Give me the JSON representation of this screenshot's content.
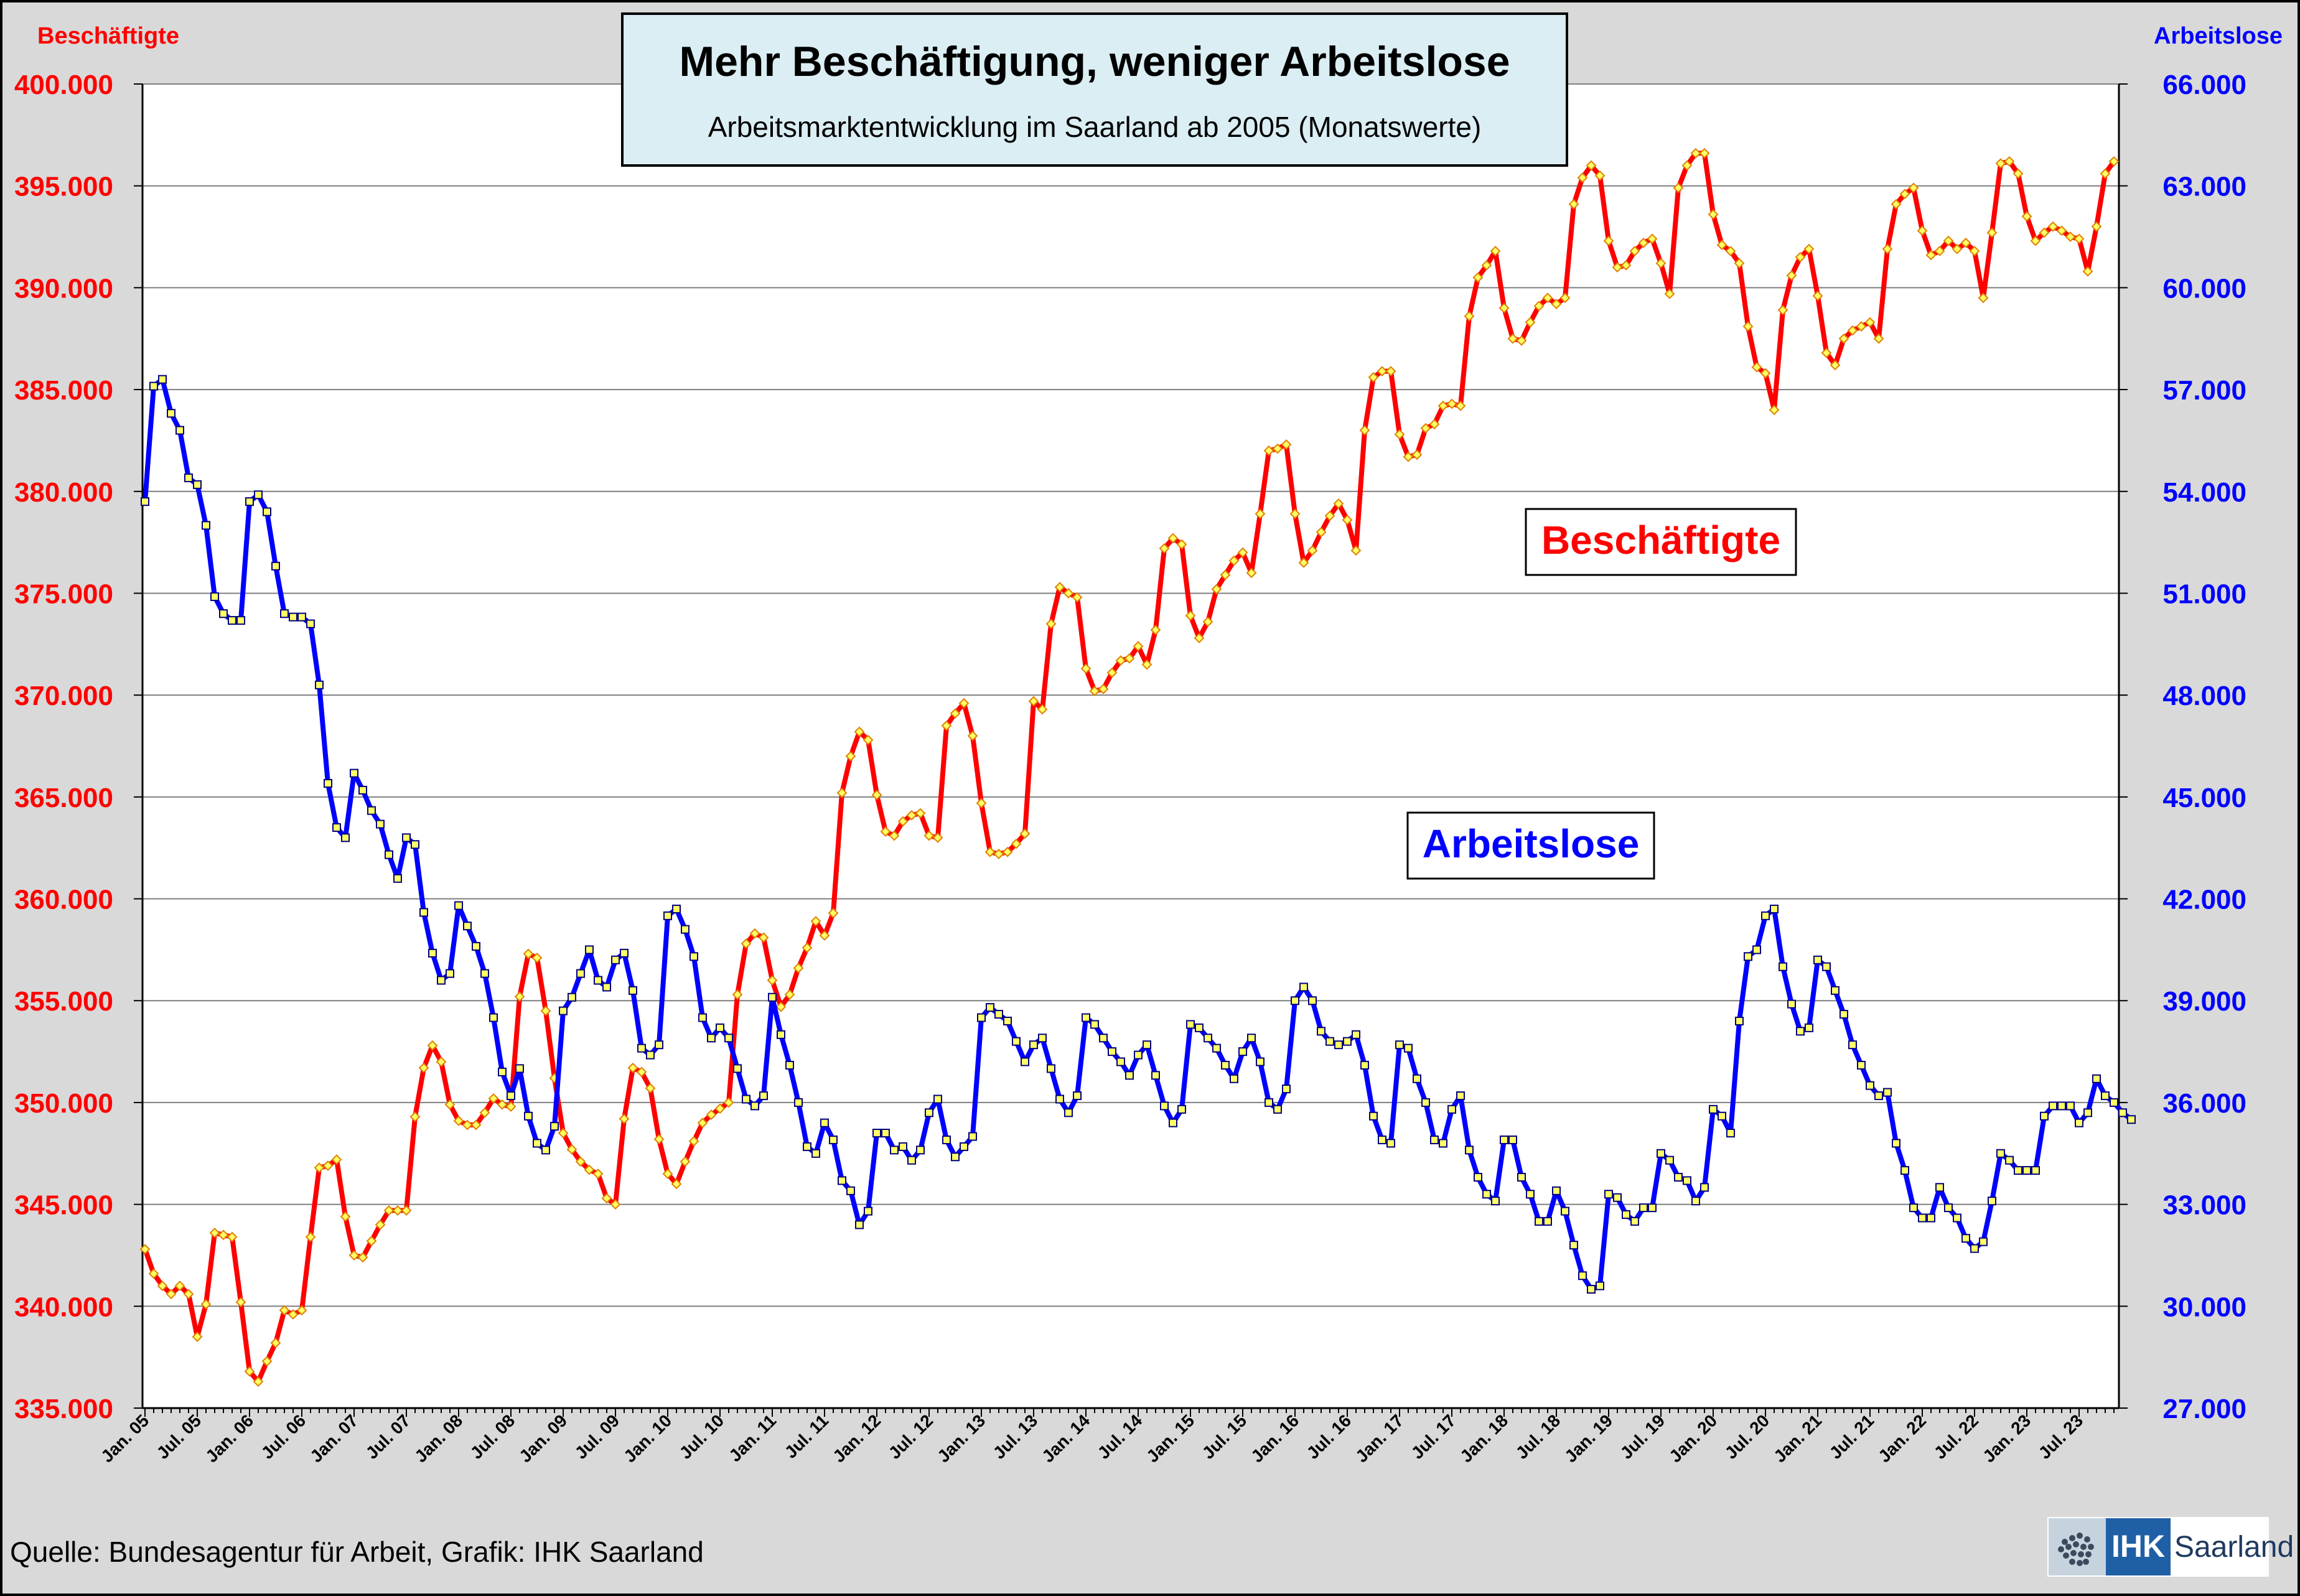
{
  "page": {
    "source": "Quelle: Bundesagentur für Arbeit, Grafik: IHK Saarland",
    "logo": {
      "text_ihk": "IHK",
      "text_region": "Saarland"
    }
  },
  "chart_data": {
    "type": "line",
    "title": "Mehr Beschäftigung, weniger Arbeitslose",
    "subtitle": "Arbeitsmarktentwicklung im Saarland ab 2005 (Monatswerte)",
    "y_left_label": "Beschäftigte",
    "y_right_label": "Arbeitslose",
    "y_left_range": [
      335000,
      400000
    ],
    "y_right_range": [
      27000,
      66000
    ],
    "y_left_ticks": [
      "335.000",
      "340.000",
      "345.000",
      "350.000",
      "355.000",
      "360.000",
      "365.000",
      "370.000",
      "375.000",
      "380.000",
      "385.000",
      "390.000",
      "395.000",
      "400.000"
    ],
    "y_right_ticks": [
      "27.000",
      "30.000",
      "33.000",
      "36.000",
      "39.000",
      "42.000",
      "45.000",
      "48.000",
      "51.000",
      "54.000",
      "57.000",
      "60.000",
      "63.000",
      "66.000"
    ],
    "x_tick_labels": [
      "Jan. 05",
      "Jul. 05",
      "Jan. 06",
      "Jul. 06",
      "Jan. 07",
      "Jul. 07",
      "Jan. 08",
      "Jul. 08",
      "Jan. 09",
      "Jul. 09",
      "Jan. 10",
      "Jul. 10",
      "Jan. 11",
      "Jul. 11",
      "Jan. 12",
      "Jul. 12",
      "Jan. 13",
      "Jul. 13",
      "Jan. 14",
      "Jul. 14",
      "Jan. 15",
      "Jul. 15",
      "Jan. 16",
      "Jul. 16",
      "Jan. 17",
      "Jul. 17",
      "Jan. 18",
      "Jul. 18",
      "Jan. 19",
      "Jul. 19",
      "Jan. 20",
      "Jul. 20",
      "Jan. 21",
      "Jul. 21",
      "Jan. 22",
      "Jul. 22",
      "Jan. 23",
      "Jul. 23"
    ],
    "grid": true,
    "colors": {
      "beschaeftigte": "#ff0000",
      "arbeitslose": "#0000ff",
      "marker_fill": "#ffff66",
      "title_box": "#daeef3",
      "axis_left": "#ff0000",
      "axis_right": "#0000ff"
    },
    "series": [
      {
        "name": "Beschäftigte",
        "axis": "left",
        "inline_label": "Beschäftigte",
        "values": [
          342800,
          341600,
          341000,
          340600,
          341000,
          340600,
          338500,
          340100,
          343600,
          343500,
          343400,
          340200,
          336800,
          336300,
          337300,
          338200,
          339800,
          339600,
          339800,
          343400,
          346800,
          346900,
          347200,
          344400,
          342500,
          342400,
          343200,
          344000,
          344700,
          344700,
          344700,
          349300,
          351700,
          352800,
          352000,
          349900,
          349100,
          348900,
          348900,
          349500,
          350200,
          349900,
          349800,
          355200,
          357300,
          357100,
          354500,
          351200,
          348500,
          347700,
          347100,
          346700,
          346500,
          345300,
          345000,
          349200,
          351700,
          351500,
          350700,
          348200,
          346500,
          346000,
          347100,
          348100,
          349000,
          349400,
          349700,
          350000,
          355300,
          357800,
          358300,
          358100,
          356000,
          354700,
          355300,
          356600,
          357600,
          358900,
          358200,
          359300,
          365200,
          367000,
          368200,
          367800,
          365100,
          363300,
          363100,
          363800,
          364100,
          364200,
          363100,
          363000,
          368500,
          369100,
          369600,
          368000,
          364700,
          362300,
          362200,
          362300,
          362700,
          363200,
          369700,
          369300,
          373500,
          375300,
          375000,
          374800,
          371300,
          370200,
          370300,
          371100,
          371700,
          371800,
          372400,
          371500,
          373200,
          377200,
          377700,
          377400,
          373900,
          372800,
          373600,
          375200,
          375900,
          376600,
          377000,
          376000,
          378900,
          382000,
          382100,
          382300,
          378900,
          376500,
          377100,
          378000,
          378800,
          379400,
          378600,
          377100,
          383000,
          385600,
          385900,
          385900,
          382800,
          381700,
          381800,
          383100,
          383300,
          384200,
          384300,
          384200,
          388600,
          390500,
          391100,
          391800,
          389000,
          387500,
          387400,
          388300,
          389100,
          389500,
          389200,
          389500,
          394100,
          395400,
          396000,
          395500,
          392300,
          391000,
          391100,
          391800,
          392200,
          392400,
          391200,
          389700,
          394900,
          396000,
          396600,
          396600,
          393600,
          392100,
          391800,
          391200,
          388100,
          386100,
          385800,
          384000,
          388900,
          390600,
          391500,
          391900,
          389600,
          386800,
          386200,
          387500,
          387900,
          388100,
          388300,
          387500,
          391900,
          394100,
          394600,
          394900,
          392800,
          391600,
          391800,
          392300,
          391900,
          392200,
          391800,
          389500,
          392700,
          396100,
          396200,
          395600,
          393500,
          392300,
          392700,
          393000,
          392800,
          392500,
          392400,
          390800,
          393000,
          395600,
          396200
        ]
      },
      {
        "name": "Arbeitslose",
        "axis": "right",
        "inline_label": "Arbeitslose",
        "values": [
          53700,
          57100,
          57300,
          56300,
          55800,
          54400,
          54200,
          53000,
          50900,
          50400,
          50200,
          50200,
          53700,
          53900,
          53400,
          51800,
          50400,
          50300,
          50300,
          50100,
          48300,
          45400,
          44100,
          43800,
          45700,
          45200,
          44600,
          44200,
          43300,
          42600,
          43800,
          43600,
          41600,
          40400,
          39600,
          39800,
          41800,
          41200,
          40600,
          39800,
          38500,
          36900,
          36200,
          37000,
          35600,
          34800,
          34600,
          35300,
          38700,
          39100,
          39800,
          40500,
          39600,
          39400,
          40200,
          40400,
          39300,
          37600,
          37400,
          37700,
          41500,
          41700,
          41100,
          40300,
          38500,
          37900,
          38200,
          37900,
          37000,
          36100,
          35900,
          36200,
          39100,
          38000,
          37100,
          36000,
          34700,
          34500,
          35400,
          34900,
          33700,
          33400,
          32400,
          32800,
          35100,
          35100,
          34600,
          34700,
          34300,
          34600,
          35700,
          36100,
          34900,
          34400,
          34700,
          35000,
          38500,
          38800,
          38600,
          38400,
          37800,
          37200,
          37700,
          37900,
          37000,
          36100,
          35700,
          36200,
          38500,
          38300,
          37900,
          37500,
          37200,
          36800,
          37400,
          37700,
          36800,
          35900,
          35400,
          35800,
          38300,
          38200,
          37900,
          37600,
          37100,
          36700,
          37500,
          37900,
          37200,
          36000,
          35800,
          36400,
          39000,
          39400,
          39000,
          38100,
          37800,
          37700,
          37800,
          38000,
          37100,
          35600,
          34900,
          34800,
          37700,
          37600,
          36700,
          36000,
          34900,
          34800,
          35800,
          36200,
          34600,
          33800,
          33300,
          33100,
          34900,
          34900,
          33800,
          33300,
          32500,
          32500,
          33400,
          32800,
          31800,
          30900,
          30500,
          30600,
          33300,
          33200,
          32700,
          32500,
          32900,
          32900,
          34500,
          34300,
          33800,
          33700,
          33100,
          33500,
          35800,
          35600,
          35100,
          38400,
          40300,
          40500,
          41500,
          41700,
          40000,
          38900,
          38100,
          38200,
          40200,
          40000,
          39300,
          38600,
          37700,
          37100,
          36500,
          36200,
          36300,
          34800,
          34000,
          32900,
          32600,
          32600,
          33500,
          32900,
          32600,
          32000,
          31700,
          31900,
          33100,
          34500,
          34300,
          34000,
          34000,
          34000,
          35600,
          35900,
          35900,
          35900,
          35400,
          35700,
          36700,
          36200,
          36000,
          35700,
          35500
        ]
      }
    ]
  }
}
